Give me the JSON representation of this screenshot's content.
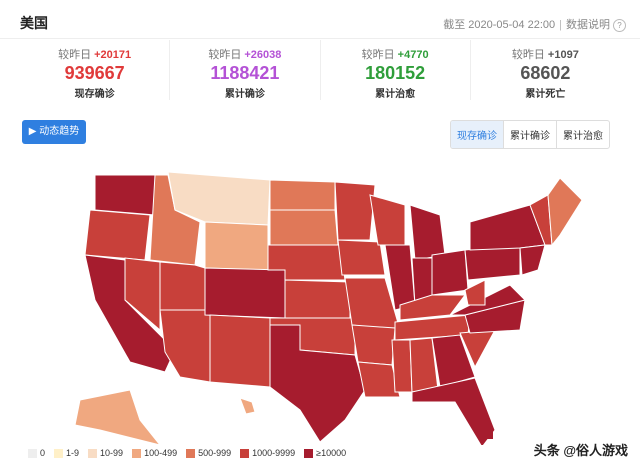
{
  "header": {
    "title": "美国",
    "update_time": "截至 2020-05-04 22:00",
    "data_note": "数据说明"
  },
  "stats": [
    {
      "label": "较昨日",
      "delta": "+20171",
      "value": "939667",
      "name": "现存确诊",
      "color": "#e03a3a"
    },
    {
      "label": "较昨日",
      "delta": "+26038",
      "value": "1188421",
      "name": "累计确诊",
      "color": "#b452d6"
    },
    {
      "label": "较昨日",
      "delta": "+4770",
      "value": "180152",
      "name": "累计治愈",
      "color": "#2f9e3a"
    },
    {
      "label": "较昨日",
      "delta": "+1097",
      "value": "68602",
      "name": "累计死亡",
      "color": "#555555"
    }
  ],
  "button": "动态趋势",
  "tabs": [
    "现存确诊",
    "累计确诊",
    "累计治愈"
  ],
  "legend": [
    {
      "label": "0",
      "color": "#eeeeee"
    },
    {
      "label": "1-9",
      "color": "#fff0c8"
    },
    {
      "label": "10-99",
      "color": "#f8dcc4"
    },
    {
      "label": "100-499",
      "color": "#f0a880"
    },
    {
      "label": "500-999",
      "color": "#e07858"
    },
    {
      "label": "1000-9999",
      "color": "#c8403a"
    },
    {
      "label": "≥10000",
      "color": "#a61c2e"
    }
  ],
  "watermark": "头条 @俗人游戏"
}
